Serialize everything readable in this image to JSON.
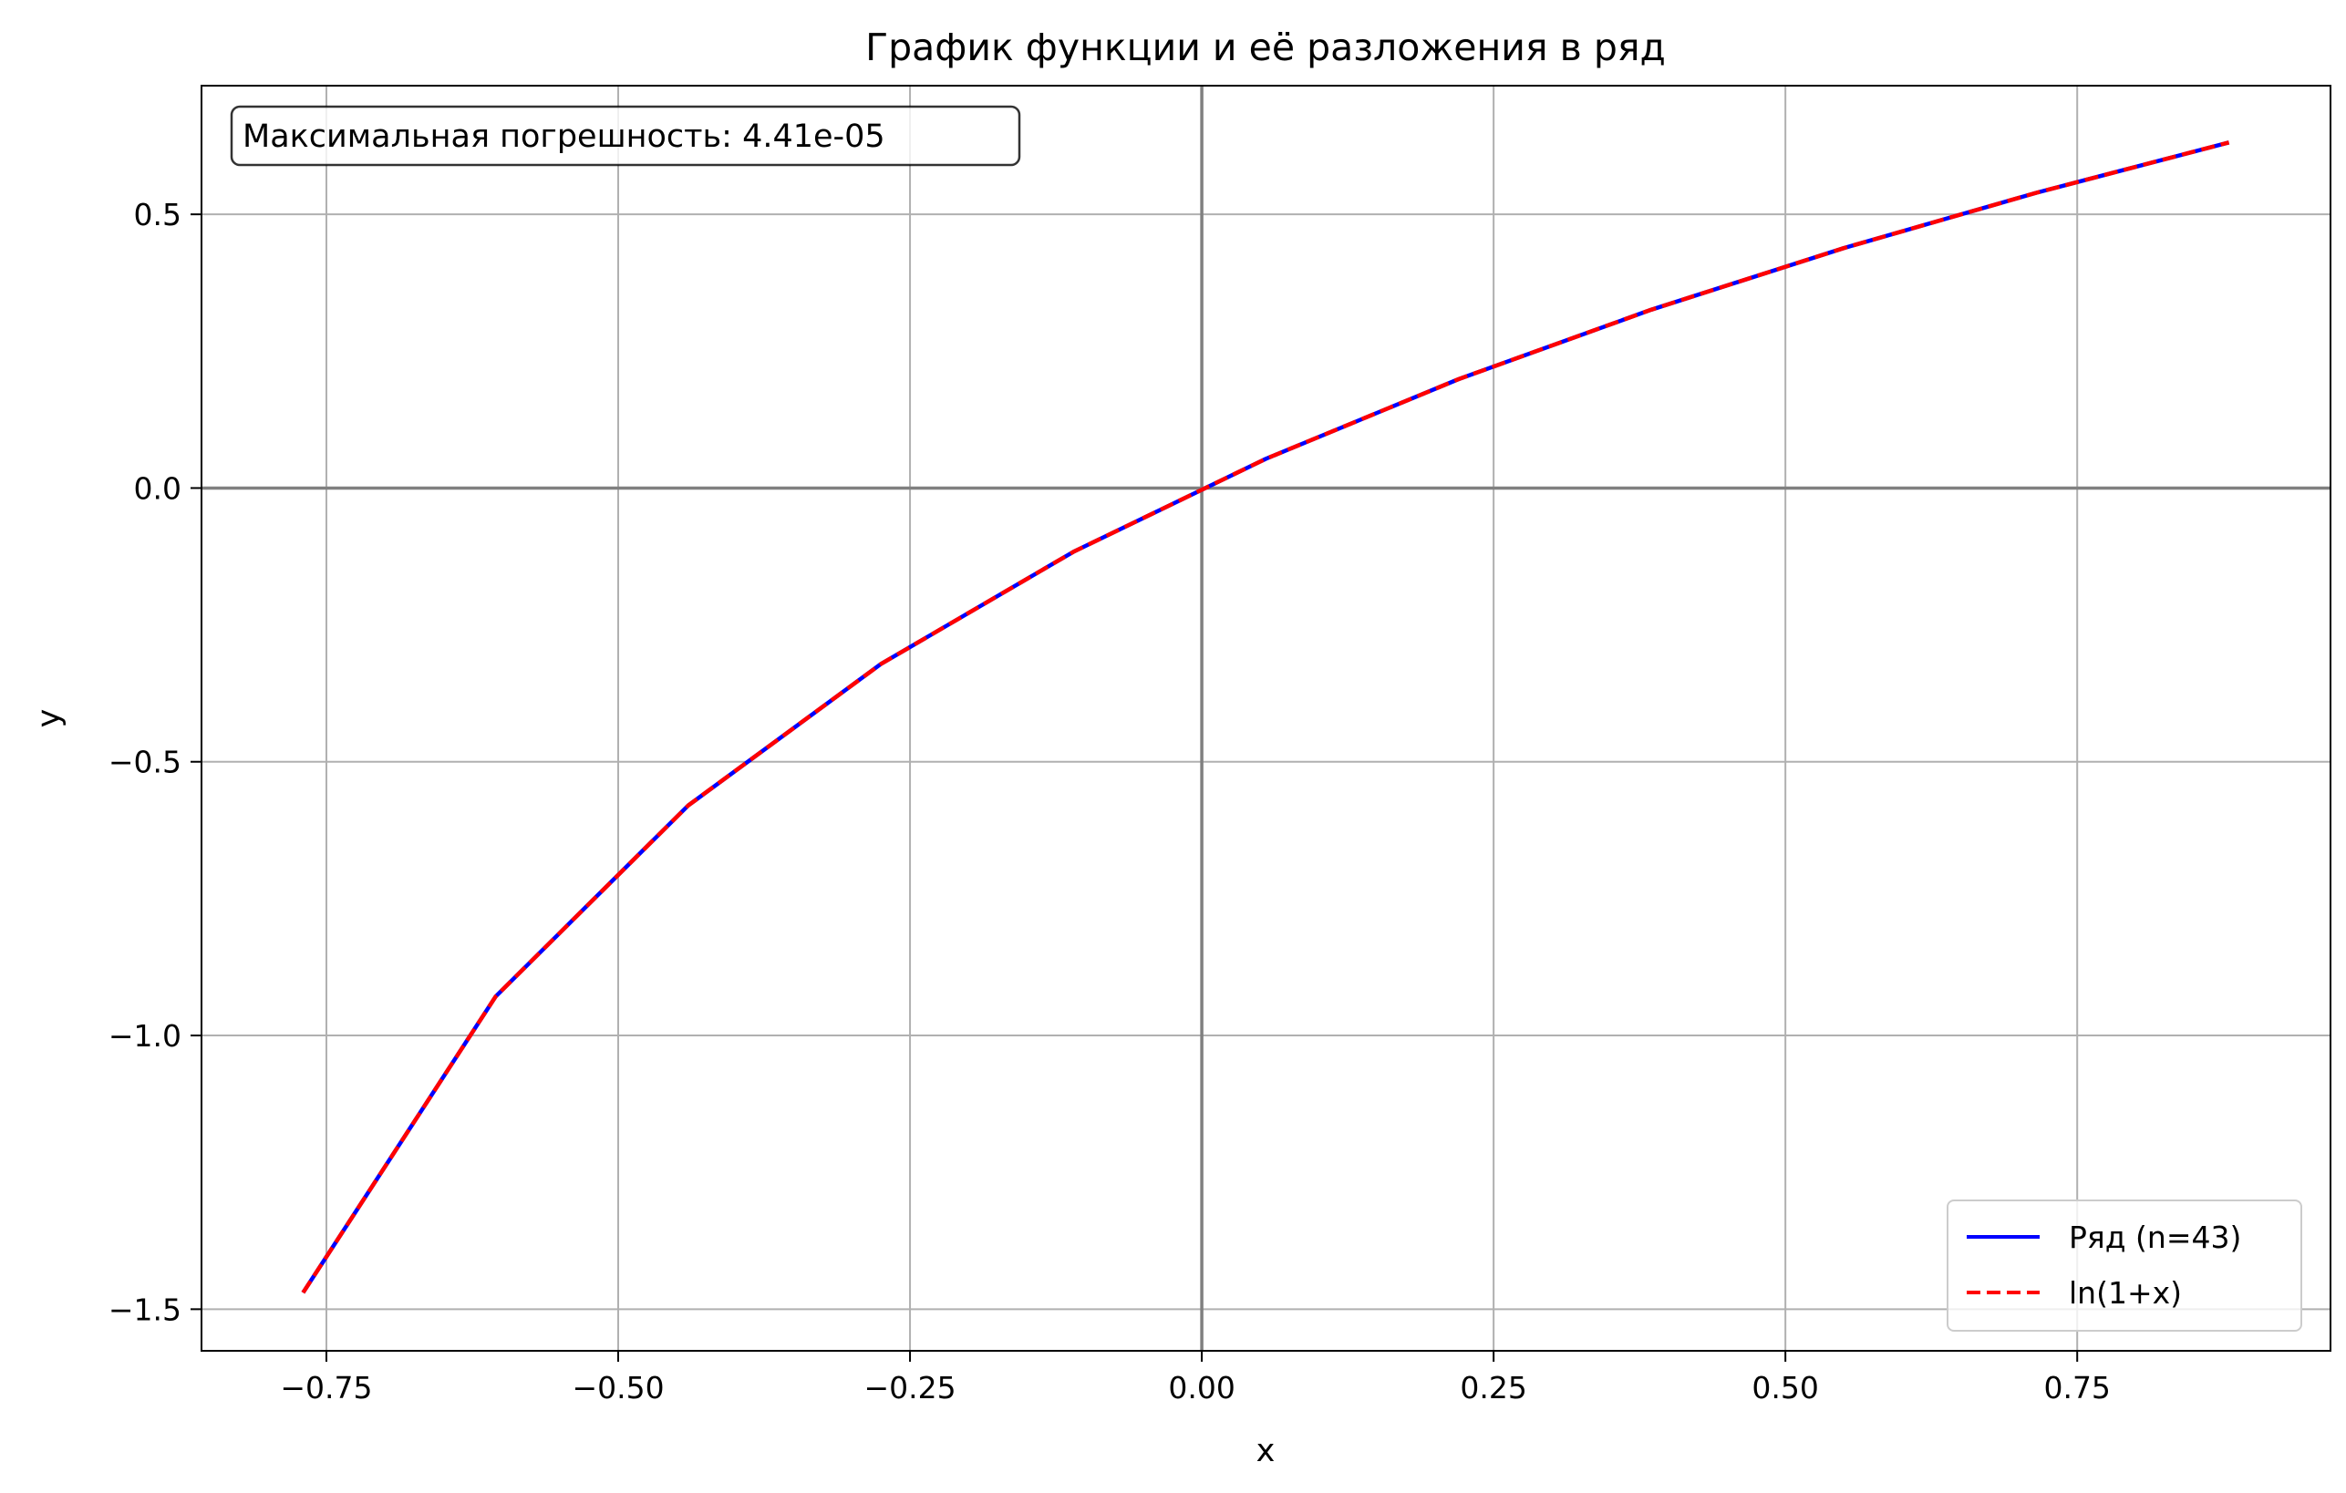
{
  "chart_data": {
    "type": "line",
    "title": "График функции и её разложения в ряд",
    "xlabel": "x",
    "ylabel": "y",
    "xlim": [
      -0.857,
      0.967
    ],
    "ylim": [
      -1.576,
      0.735
    ],
    "xticks": [
      -0.75,
      -0.5,
      -0.25,
      0.0,
      0.25,
      0.5,
      0.75
    ],
    "xtick_labels": [
      "−0.75",
      "−0.50",
      "−0.25",
      "0.00",
      "0.25",
      "0.50",
      "0.75"
    ],
    "yticks": [
      -1.5,
      -1.0,
      -0.5,
      0.0,
      0.5
    ],
    "ytick_labels": [
      "−1.5",
      "−1.0",
      "−0.5",
      "0.0",
      "0.5"
    ],
    "grid": true,
    "legend_position": "lower-right",
    "annotation": "Максимальная погрешность: 4.41e-05",
    "x": [
      -0.77,
      -0.605,
      -0.44,
      -0.275,
      -0.11,
      0.055,
      0.22,
      0.385,
      0.55,
      0.715,
      0.88
    ],
    "series": [
      {
        "name": "Ряд (n=43)",
        "color": "#0000ff",
        "style": "solid",
        "values": [
          -1.4697,
          -0.9289,
          -0.5798,
          -0.3216,
          -0.1165,
          0.0535,
          0.1989,
          0.3257,
          0.4383,
          0.5394,
          0.6313
        ]
      },
      {
        "name": "ln(1+x)",
        "color": "#ff0000",
        "style": "dashed",
        "values": [
          -1.4697,
          -0.9289,
          -0.5798,
          -0.3216,
          -0.1165,
          0.0535,
          0.1989,
          0.3257,
          0.4383,
          0.5394,
          0.6313
        ]
      }
    ]
  }
}
